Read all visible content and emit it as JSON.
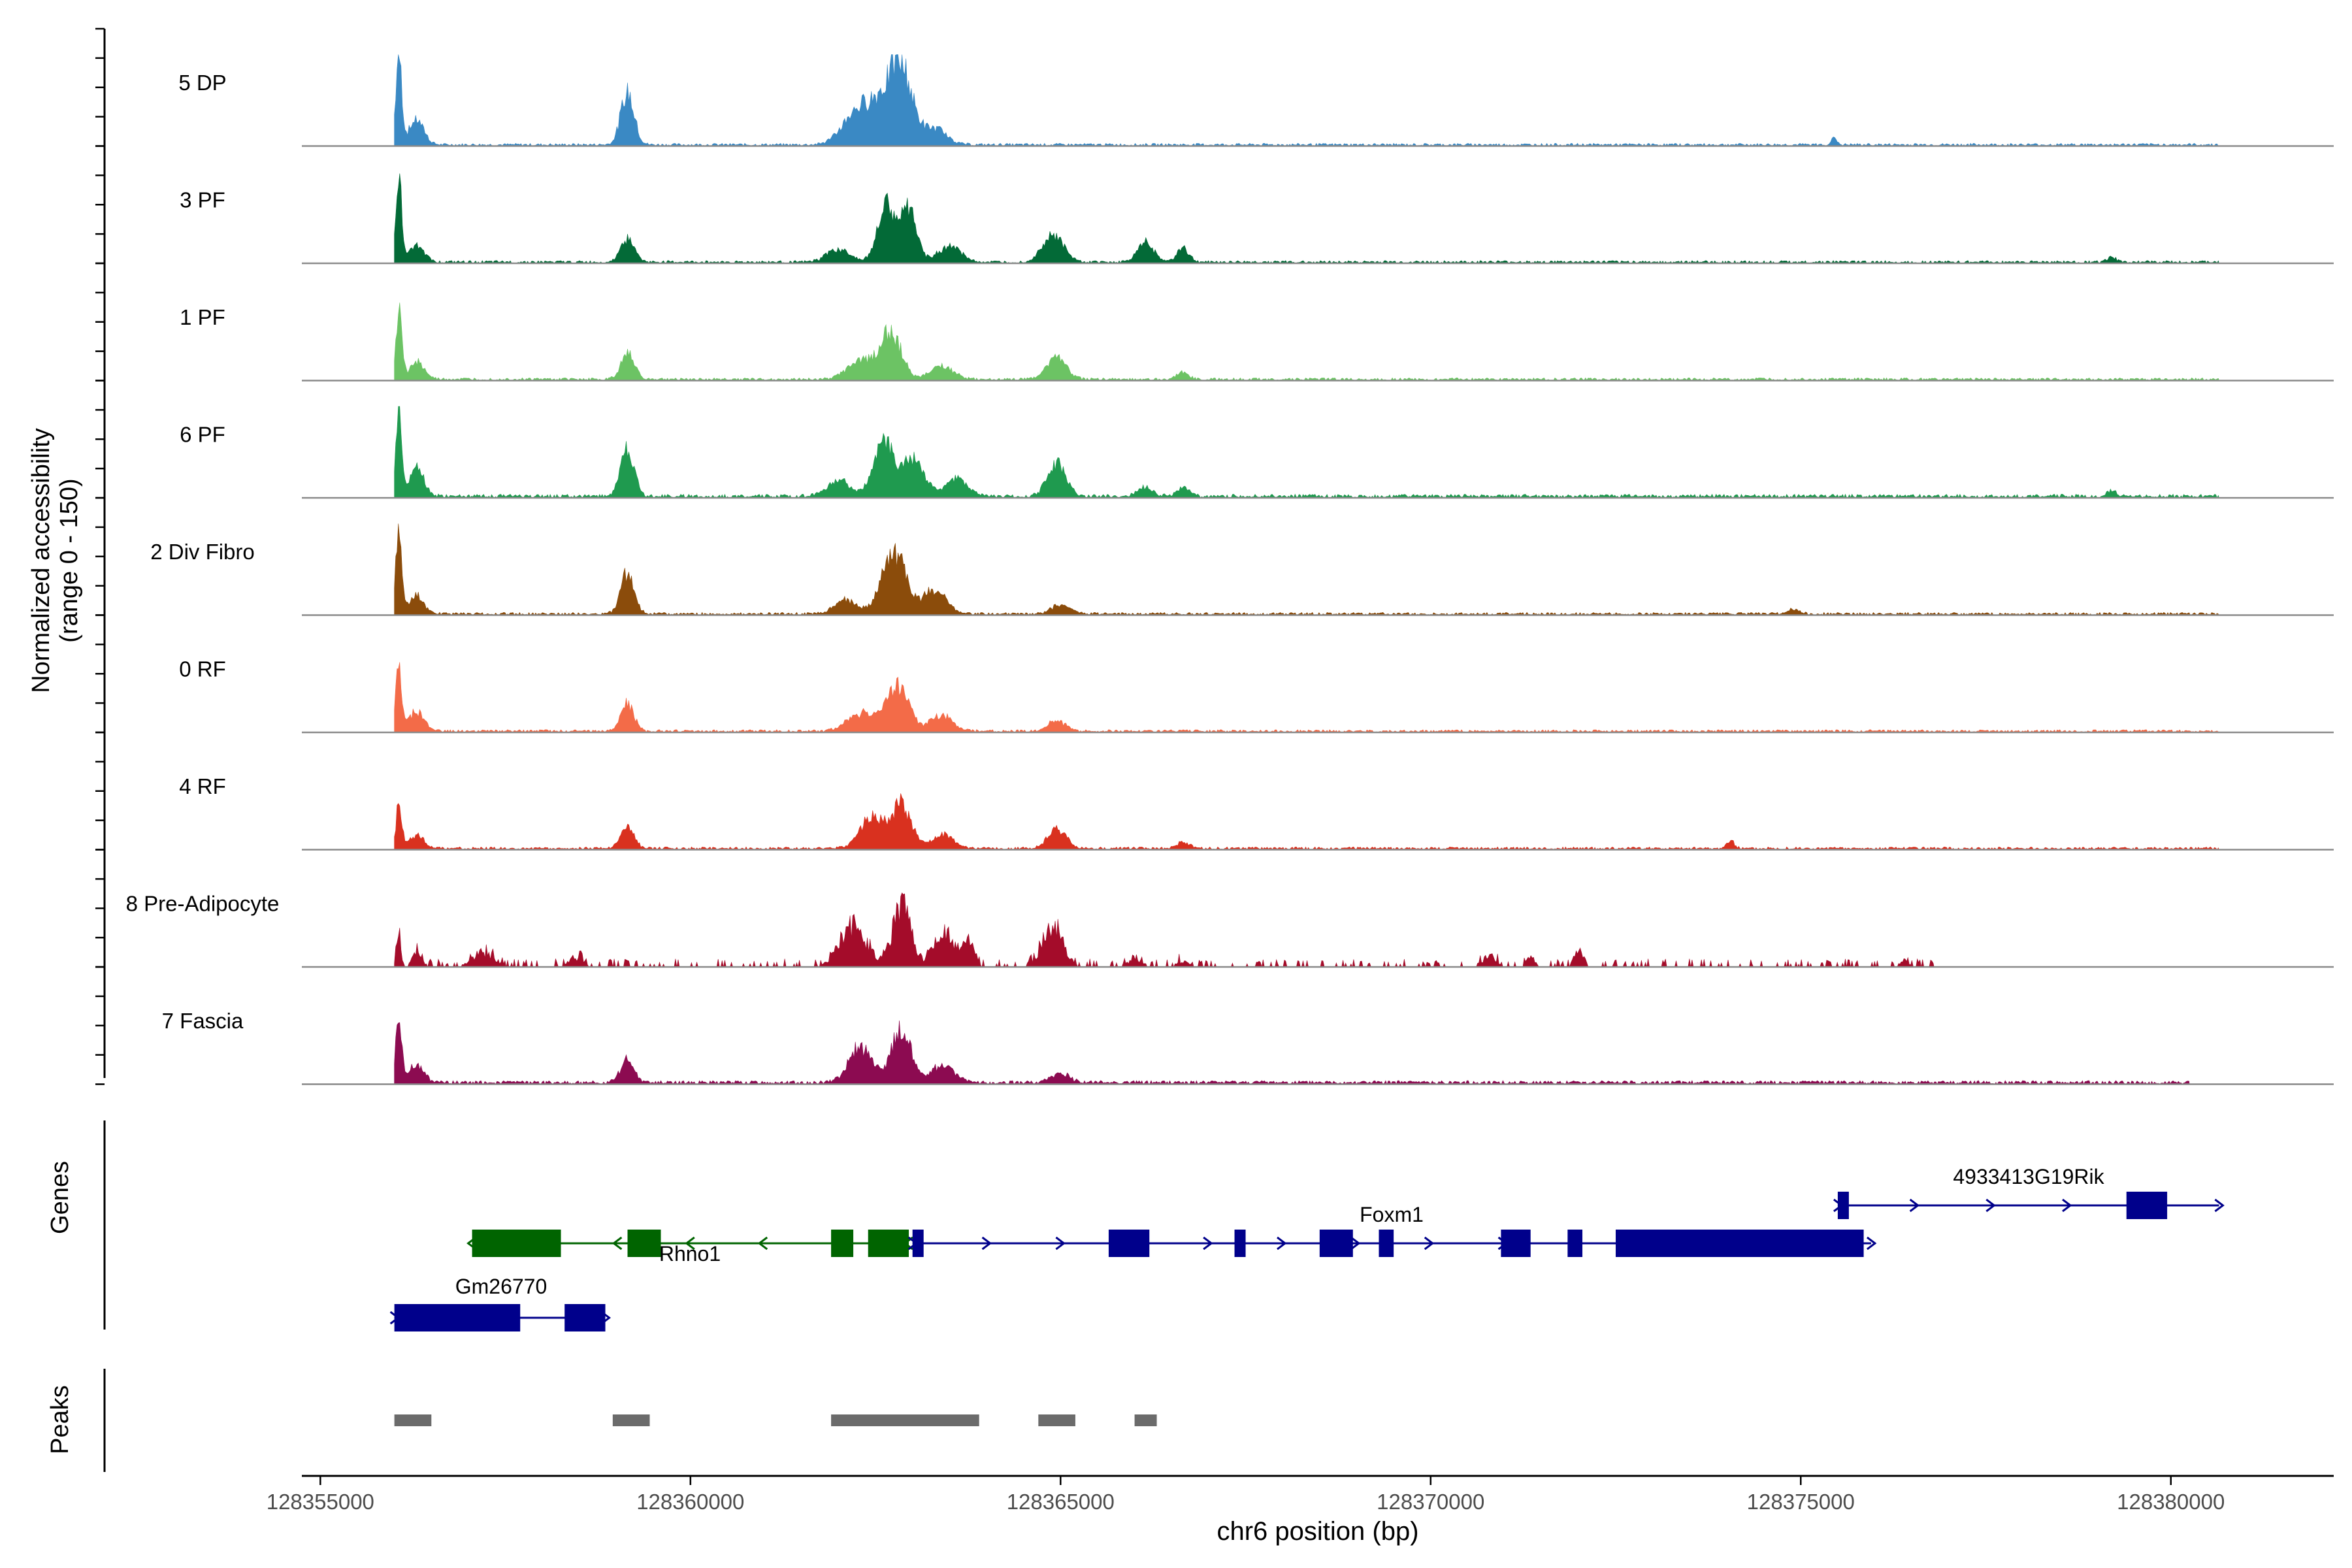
{
  "chart_data": {
    "type": "coverage",
    "title": "",
    "y_axis_label": "Normalized accessibility",
    "y_axis_range_label": "(range 0 - 150)",
    "y_range": [
      0,
      150
    ],
    "x_axis_label": "chr6 position (bp)",
    "x_range": [
      128355000,
      128382000
    ],
    "x_ticks": [
      128355000,
      128360000,
      128365000,
      128370000,
      128375000,
      128380000
    ],
    "x_tick_labels": [
      "128355000",
      "128360000",
      "128365000",
      "128370000",
      "128375000",
      "128380000"
    ],
    "genes_track_label": "Genes",
    "peaks_track_label": "Peaks",
    "tracks": [
      {
        "name": "5 DP",
        "color": "#3a89c4",
        "peaks": [
          [
            128356060,
            1.0,
            40
          ],
          [
            128356300,
            0.28,
            100
          ],
          [
            128359150,
            0.58,
            90
          ],
          [
            128362200,
            0.28,
            180
          ],
          [
            128362550,
            0.45,
            200
          ],
          [
            128362850,
            0.78,
            150
          ],
          [
            128363300,
            0.18,
            160
          ],
          [
            128375450,
            0.07,
            40
          ]
        ],
        "base": 0.03,
        "end": 128380650
      },
      {
        "name": "3 PF",
        "color": "#036a37",
        "peaks": [
          [
            128356060,
            0.9,
            40
          ],
          [
            128356300,
            0.2,
            100
          ],
          [
            128359150,
            0.27,
            90
          ],
          [
            128362000,
            0.15,
            150
          ],
          [
            128362650,
            0.62,
            120
          ],
          [
            128362950,
            0.55,
            110
          ],
          [
            128363500,
            0.18,
            150
          ],
          [
            128364900,
            0.3,
            140
          ],
          [
            128366150,
            0.22,
            110
          ],
          [
            128366650,
            0.17,
            80
          ],
          [
            128379200,
            0.05,
            60
          ]
        ],
        "base": 0.03,
        "end": 128380650
      },
      {
        "name": "1 PF",
        "color": "#6cc364",
        "peaks": [
          [
            128356060,
            0.75,
            40
          ],
          [
            128356300,
            0.2,
            100
          ],
          [
            128359150,
            0.3,
            90
          ],
          [
            128362300,
            0.2,
            180
          ],
          [
            128362700,
            0.5,
            150
          ],
          [
            128363400,
            0.15,
            150
          ],
          [
            128364950,
            0.25,
            130
          ],
          [
            128366650,
            0.08,
            80
          ]
        ],
        "base": 0.03,
        "end": 128380650
      },
      {
        "name": "6 PF",
        "color": "#1f9a4f",
        "peaks": [
          [
            128356060,
            1.0,
            40
          ],
          [
            128356300,
            0.3,
            100
          ],
          [
            128359150,
            0.55,
            90
          ],
          [
            128362000,
            0.18,
            150
          ],
          [
            128362600,
            0.58,
            140
          ],
          [
            128363000,
            0.4,
            160
          ],
          [
            128363600,
            0.2,
            140
          ],
          [
            128364950,
            0.4,
            120
          ],
          [
            128366150,
            0.1,
            100
          ],
          [
            128366650,
            0.1,
            80
          ],
          [
            128379200,
            0.06,
            60
          ]
        ],
        "base": 0.04,
        "end": 128380650
      },
      {
        "name": "2 Div Fibro",
        "color": "#8b4c0b",
        "peaks": [
          [
            128356060,
            1.0,
            40
          ],
          [
            128356300,
            0.2,
            100
          ],
          [
            128359150,
            0.45,
            90
          ],
          [
            128362100,
            0.15,
            150
          ],
          [
            128362750,
            0.7,
            160
          ],
          [
            128363300,
            0.28,
            150
          ],
          [
            128365000,
            0.1,
            120
          ],
          [
            128374900,
            0.05,
            80
          ]
        ],
        "base": 0.03,
        "end": 128380650
      },
      {
        "name": "0 RF",
        "color": "#f36b48",
        "peaks": [
          [
            128356060,
            0.72,
            40
          ],
          [
            128356300,
            0.22,
            100
          ],
          [
            128359150,
            0.3,
            90
          ],
          [
            128362300,
            0.2,
            180
          ],
          [
            128362800,
            0.5,
            150
          ],
          [
            128363400,
            0.18,
            150
          ],
          [
            128364950,
            0.12,
            120
          ]
        ],
        "base": 0.03,
        "end": 128380650
      },
      {
        "name": "4 RF",
        "color": "#d9311f",
        "peaks": [
          [
            128356060,
            0.48,
            40
          ],
          [
            128356300,
            0.15,
            100
          ],
          [
            128359150,
            0.22,
            90
          ],
          [
            128362450,
            0.35,
            160
          ],
          [
            128362850,
            0.48,
            130
          ],
          [
            128363400,
            0.15,
            150
          ],
          [
            128364950,
            0.22,
            120
          ],
          [
            128366650,
            0.08,
            80
          ],
          [
            128374050,
            0.08,
            60
          ]
        ],
        "base": 0.03,
        "end": 128380650
      },
      {
        "name": "8 Pre-Adipocyte",
        "color": "#a40c2a",
        "peaks": [
          [
            128356060,
            0.45,
            30
          ],
          [
            128356300,
            0.2,
            60
          ],
          [
            128357200,
            0.18,
            150
          ],
          [
            128358500,
            0.1,
            80
          ],
          [
            128362200,
            0.55,
            180
          ],
          [
            128362850,
            0.8,
            120
          ],
          [
            128363400,
            0.45,
            120
          ],
          [
            128363750,
            0.35,
            80
          ],
          [
            128364900,
            0.5,
            140
          ],
          [
            128366000,
            0.08,
            120
          ],
          [
            128366650,
            0.07,
            80
          ],
          [
            128370800,
            0.15,
            80
          ],
          [
            128371350,
            0.12,
            60
          ],
          [
            128372000,
            0.22,
            60
          ],
          [
            128376400,
            0.08,
            60
          ]
        ],
        "base": 0.06,
        "end": 128376800,
        "sparse": true
      },
      {
        "name": "7 Fascia",
        "color": "#8c0b51",
        "peaks": [
          [
            128356060,
            0.75,
            40
          ],
          [
            128356300,
            0.2,
            100
          ],
          [
            128359150,
            0.28,
            90
          ],
          [
            128362300,
            0.4,
            160
          ],
          [
            128362850,
            0.6,
            130
          ],
          [
            128363400,
            0.2,
            150
          ],
          [
            128365000,
            0.1,
            120
          ]
        ],
        "base": 0.04,
        "end": 128380250
      }
    ],
    "genes": [
      {
        "name": "Gm26770",
        "strand": "+",
        "color": "#00008b",
        "row": 2,
        "start": 128356000,
        "end": 128358850,
        "exons": [
          [
            128356000,
            128357700
          ],
          [
            128358300,
            128358850
          ]
        ]
      },
      {
        "name": "Rhno1",
        "strand": "-",
        "color": "#006400",
        "row": 1,
        "start": 128357050,
        "end": 128362950,
        "exons": [
          [
            128357050,
            128358250
          ],
          [
            128359150,
            128359600
          ],
          [
            128361900,
            128362200
          ],
          [
            128362400,
            128362950
          ]
        ]
      },
      {
        "name": "Foxm1",
        "strand": "+",
        "color": "#00008b",
        "row": 1,
        "start": 128363000,
        "end": 128375950,
        "exons": [
          [
            128363000,
            128363150
          ],
          [
            128365650,
            128366200
          ],
          [
            128367350,
            128367500
          ],
          [
            128368500,
            128368950
          ],
          [
            128369300,
            128369500
          ],
          [
            128370950,
            128371350
          ],
          [
            128371850,
            128372050
          ],
          [
            128372500,
            128375850
          ]
        ]
      },
      {
        "name": "4933413G19Rik",
        "strand": "+",
        "color": "#00008b",
        "row": 0,
        "start": 128375500,
        "end": 128380650,
        "exons": [
          [
            128375500,
            128375650
          ],
          [
            128379400,
            128379950
          ]
        ]
      }
    ],
    "peak_regions": [
      [
        128356000,
        128356500
      ],
      [
        128358950,
        128359450
      ],
      [
        128361900,
        128363900
      ],
      [
        128364700,
        128365200
      ],
      [
        128366000,
        128366300
      ]
    ]
  }
}
